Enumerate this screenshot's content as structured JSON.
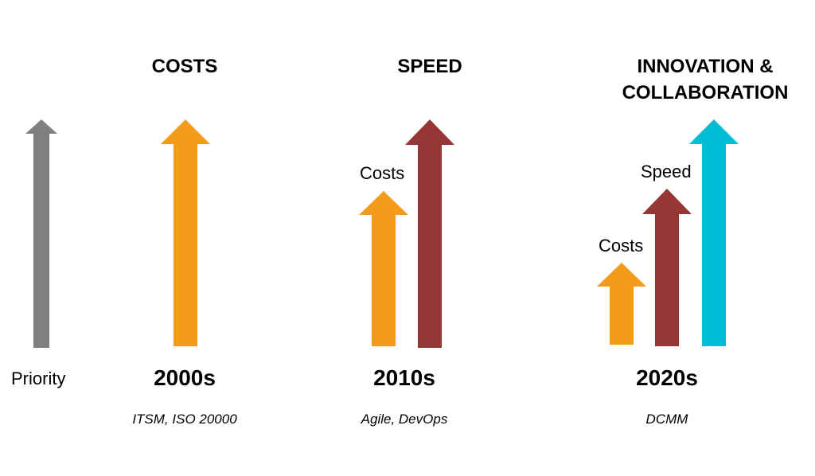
{
  "axis": {
    "label": "Priority"
  },
  "columns": [
    {
      "heading": "COSTS",
      "decade": "2000s",
      "technologies": "ITSM, ISO 20000",
      "labels": []
    },
    {
      "heading": "SPEED",
      "decade": "2010s",
      "technologies": "Agile, DevOps",
      "labels": [
        "Costs"
      ]
    },
    {
      "heading_lines": [
        "INNOVATION &",
        "COLLABORATION"
      ],
      "decade": "2020s",
      "technologies": "DCMM",
      "labels": [
        "Costs",
        "Speed"
      ]
    }
  ],
  "colors": {
    "priority": "#808080",
    "costs": "#f39c1b",
    "speed": "#973735",
    "innovation": "#00bcd4"
  }
}
